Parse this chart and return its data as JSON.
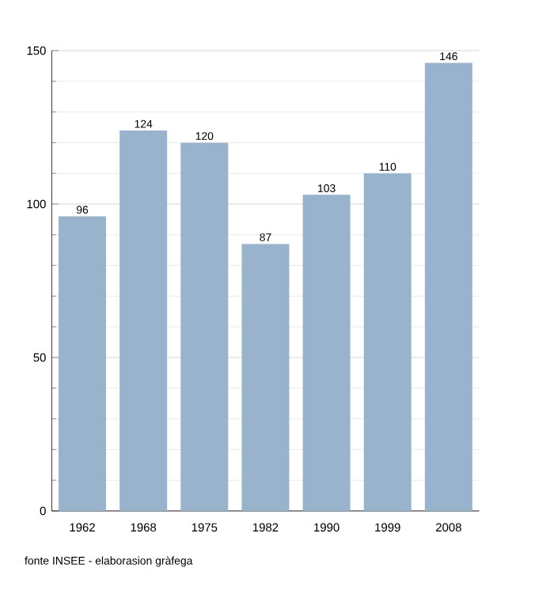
{
  "chart_data": {
    "type": "bar",
    "categories": [
      "1962",
      "1968",
      "1975",
      "1982",
      "1990",
      "1999",
      "2008"
    ],
    "values": [
      96,
      124,
      120,
      87,
      103,
      110,
      146
    ],
    "color": "#9ab3cc",
    "ylim": [
      0,
      150
    ],
    "yticks": [
      0,
      50,
      100,
      150
    ],
    "grid": "y",
    "data_labels": true,
    "annotations": [
      "fonte INSEE - elaborasion gràfega"
    ]
  }
}
